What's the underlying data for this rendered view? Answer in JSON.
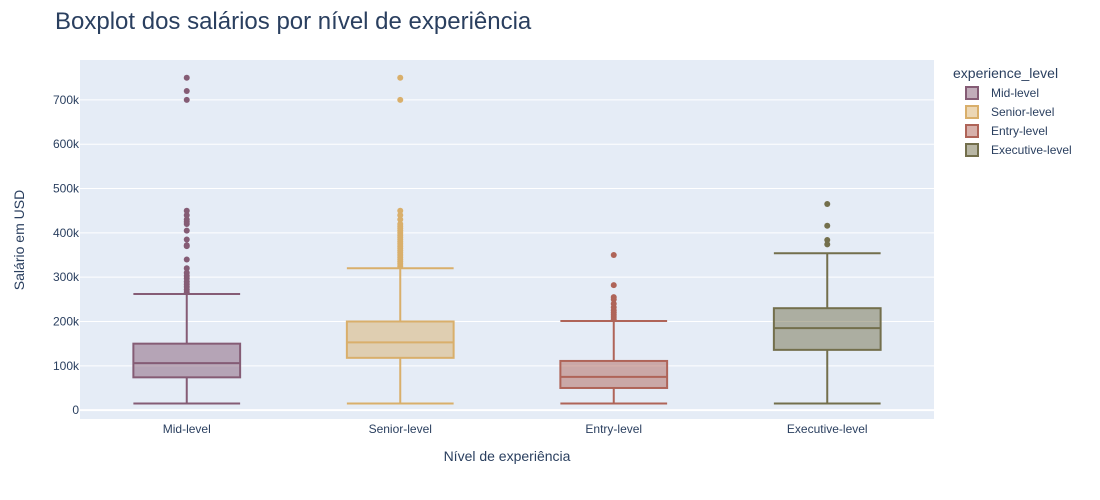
{
  "chart_data": {
    "type": "box",
    "title": "Boxplot dos salários por nível de experiência",
    "xlabel": "Nível de experiência",
    "ylabel": "Salário em USD",
    "ylim": [
      -20000,
      790000
    ],
    "yticks": [
      0,
      100000,
      200000,
      300000,
      400000,
      500000,
      600000,
      700000
    ],
    "ytick_labels": [
      "0",
      "100k",
      "200k",
      "300k",
      "400k",
      "500k",
      "600k",
      "700k"
    ],
    "grid": true,
    "legend": {
      "title": "experience_level",
      "position": "top-right"
    },
    "categories": [
      "Mid-level",
      "Senior-level",
      "Entry-level",
      "Executive-level"
    ],
    "series": [
      {
        "name": "Mid-level",
        "color": "#855c75",
        "min": 15000,
        "q1": 74000,
        "median": 106000,
        "q3": 150000,
        "max": 262000,
        "outliers": [
          266000,
          272000,
          278000,
          284000,
          290000,
          297000,
          303000,
          310000,
          320000,
          340000,
          370000,
          372000,
          385000,
          405000,
          420000,
          425000,
          430000,
          440000,
          450000,
          700000,
          720000,
          750000
        ]
      },
      {
        "name": "Senior-level",
        "color": "#d9af6b",
        "min": 15000,
        "q1": 118000,
        "median": 153000,
        "q3": 200000,
        "max": 320000,
        "outliers": [
          325000,
          330000,
          335000,
          340000,
          345000,
          350000,
          355000,
          360000,
          365000,
          370000,
          375000,
          380000,
          385000,
          390000,
          395000,
          400000,
          405000,
          410000,
          415000,
          420000,
          430000,
          440000,
          450000,
          700000,
          750000
        ]
      },
      {
        "name": "Entry-level",
        "color": "#af6458",
        "min": 15000,
        "q1": 50000,
        "median": 75000,
        "q3": 111000,
        "max": 201000,
        "outliers": [
          205000,
          210000,
          215000,
          220000,
          225000,
          232000,
          240000,
          250000,
          255000,
          282000,
          350000
        ]
      },
      {
        "name": "Executive-level",
        "color": "#736f4c",
        "min": 15000,
        "q1": 136000,
        "median": 185000,
        "q3": 230000,
        "max": 354000,
        "outliers": [
          374000,
          384000,
          416000,
          465000
        ]
      }
    ]
  }
}
